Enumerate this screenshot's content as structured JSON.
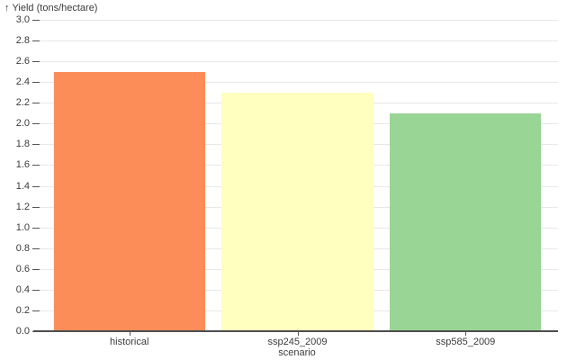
{
  "chart_data": {
    "type": "bar",
    "categories": [
      "historical",
      "ssp245_2009",
      "ssp585_2009"
    ],
    "values": [
      2.5,
      2.3,
      2.1
    ],
    "bar_colors": [
      "#fc8d59",
      "#ffffbf",
      "#99d594"
    ],
    "xlabel": "scenario",
    "ylabel": "Yield (tons/hectare)",
    "ylabel_arrow": "↑",
    "ylim": [
      0,
      3.0
    ],
    "ytick_step": 0.2,
    "ytick_decimals": 1,
    "grid": true,
    "legend_position": "none",
    "band_padding": 0.1
  },
  "colors": {
    "background": "#ffffff",
    "gridline": "#e8e8e8",
    "axis_line": "#4d4d4d",
    "tick_mark": "#555555",
    "text": "#3b3b3b"
  }
}
